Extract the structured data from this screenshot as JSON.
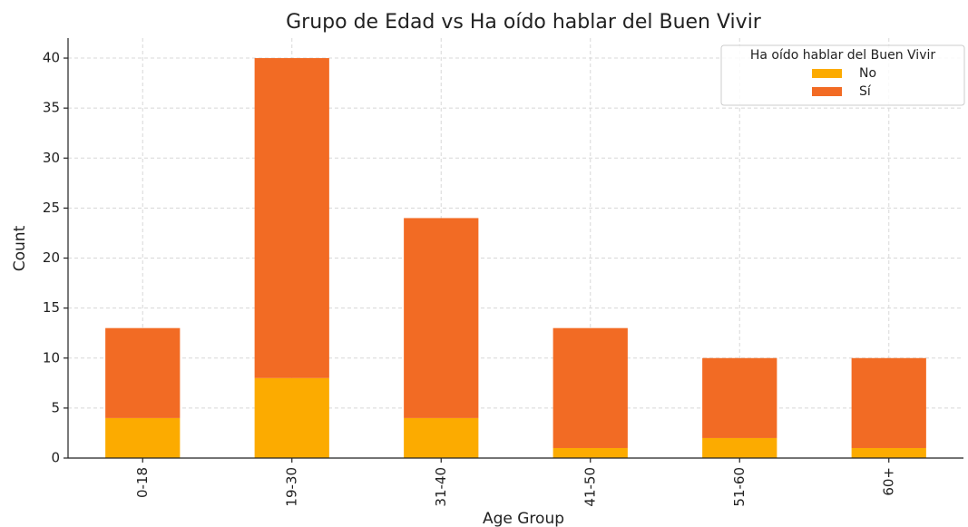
{
  "chart_data": {
    "type": "stacked_bar",
    "title": "Grupo de Edad vs Ha oído hablar del Buen Vivir",
    "x_label": "Age Group",
    "y_label": "Count",
    "categories": [
      "0-18",
      "19-30",
      "31-40",
      "41-50",
      "51-60",
      "60+"
    ],
    "series": [
      {
        "name": "No",
        "color": "#fcab00",
        "values": [
          4,
          8,
          4,
          1,
          2,
          1
        ]
      },
      {
        "name": "Sí",
        "color": "#f26b24",
        "values": [
          9,
          32,
          20,
          12,
          8,
          9
        ]
      }
    ],
    "legend_title": "Ha oído hablar del Buen Vivir",
    "legend_position": "upper right",
    "ylim": [
      0,
      42
    ],
    "yticks": [
      0,
      5,
      10,
      15,
      20,
      25,
      30,
      35,
      40
    ],
    "grid": true
  }
}
